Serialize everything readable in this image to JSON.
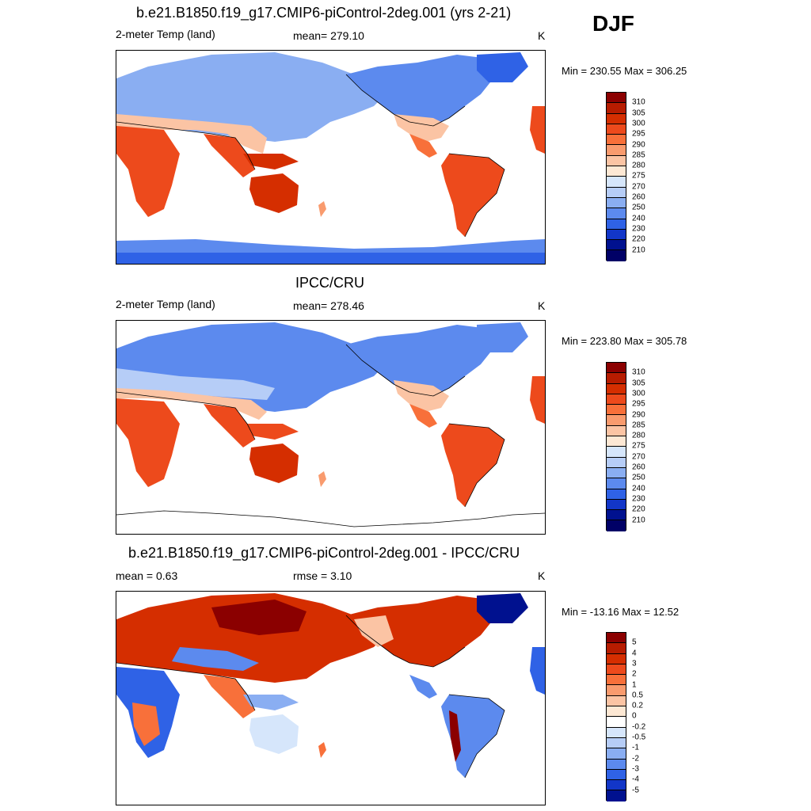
{
  "season": "DJF",
  "panels": [
    {
      "title": "b.e21.B1850.f19_g17.CMIP6-piControl-2deg.001 (yrs 2-21)",
      "left_label": "2-meter Temp (land)",
      "center_label": "mean= 279.10",
      "units": "K",
      "minmax": "Min = 230.55 Max = 306.25",
      "colorbar_labels": [
        "310",
        "305",
        "300",
        "295",
        "290",
        "285",
        "280",
        "275",
        "270",
        "260",
        "250",
        "240",
        "230",
        "220",
        "210"
      ]
    },
    {
      "title": "IPCC/CRU",
      "left_label": "2-meter Temp (land)",
      "center_label": "mean= 278.46",
      "units": "K",
      "minmax": "Min = 223.80 Max = 305.78",
      "colorbar_labels": [
        "310",
        "305",
        "300",
        "295",
        "290",
        "285",
        "280",
        "275",
        "270",
        "260",
        "250",
        "240",
        "230",
        "220",
        "210"
      ]
    },
    {
      "title": "b.e21.B1850.f19_g17.CMIP6-piControl-2deg.001 - IPCC/CRU",
      "left_label": "mean =   0.63",
      "center_label": "rmse =   3.10",
      "units": "K",
      "minmax": "Min = -13.16 Max =  12.52",
      "colorbar_labels": [
        "5",
        "4",
        "3",
        "2",
        "1",
        "0.5",
        "0.2",
        "0",
        "-0.2",
        "-0.5",
        "-1",
        "-2",
        "-3",
        "-4",
        "-5"
      ]
    }
  ],
  "colors": {
    "abs_scale": [
      "#8b0000",
      "#b71c00",
      "#d52e00",
      "#ed4a1c",
      "#f8703a",
      "#f99b6e",
      "#fbc4a4",
      "#fde8d4",
      "#d6e6fb",
      "#b6cdf7",
      "#8aaef2",
      "#5c8aee",
      "#2f62e6",
      "#1236c8",
      "#00118f",
      "#000066"
    ],
    "diff_scale": [
      "#8b0000",
      "#b71c00",
      "#d52e00",
      "#ed4a1c",
      "#f8703a",
      "#f99b6e",
      "#fbc4a4",
      "#fde8d4",
      "#ffffff",
      "#d6e6fb",
      "#b6cdf7",
      "#8aaef2",
      "#5c8aee",
      "#2f62e6",
      "#1236c8",
      "#00118f"
    ]
  }
}
